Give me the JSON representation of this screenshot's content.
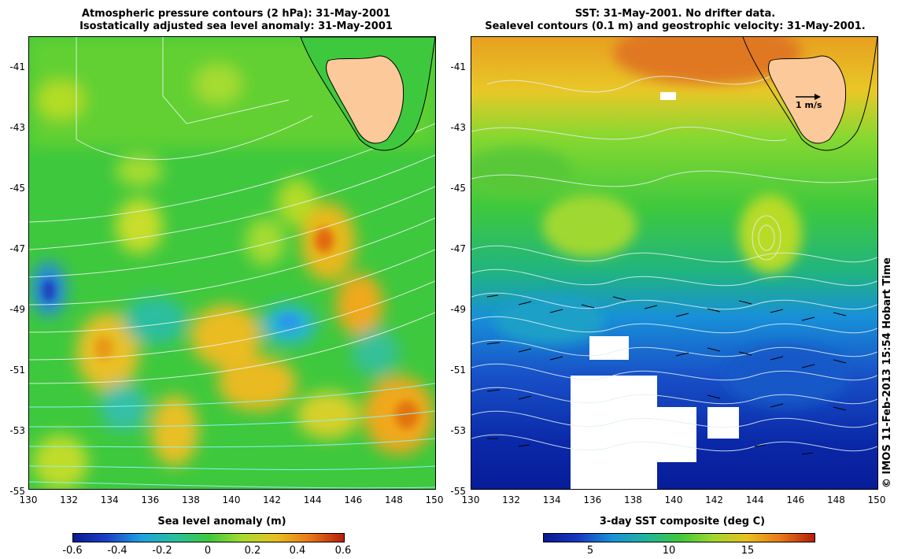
{
  "left_panel": {
    "title_line1": "Atmospheric pressure contours (2 hPa): 31-May-2001",
    "title_line2": "Isostatically adjusted sea level anomaly: 31-May-2001",
    "colorbar_label": "Sea level anomaly (m)",
    "colorbar_ticks": [
      "-0.6",
      "-0.4",
      "-0.2",
      "0",
      "0.2",
      "0.4",
      "0.6"
    ],
    "colors": {
      "low": "#0a2a9a",
      "mid": "#3ec83e",
      "high": "#b41e0a"
    }
  },
  "right_panel": {
    "title_line1": "SST: 31-May-2001. No drifter data.",
    "title_line2": "Sealevel contours (0.1 m) and geostrophic velocity: 31-May-2001.",
    "colorbar_label": "3-day SST composite (deg C)",
    "colorbar_ticks": [
      "5",
      "10",
      "15"
    ],
    "scale_arrow_label": "1 m/s",
    "colors": {
      "cold": "#0a1aa0",
      "warm": "#e0a020",
      "land": "#fbc99a"
    }
  },
  "axes": {
    "y_ticks": [
      "-41",
      "-43",
      "-45",
      "-47",
      "-49",
      "-51",
      "-53",
      "-55"
    ],
    "x_ticks": [
      "130",
      "132",
      "134",
      "136",
      "138",
      "140",
      "142",
      "144",
      "146",
      "148",
      "150"
    ]
  },
  "credit": "© IMOS 11-Feb-2013 15:54 Hobart Time"
}
